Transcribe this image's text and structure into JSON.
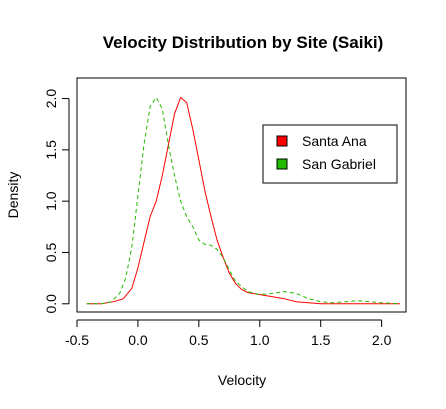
{
  "chart_data": {
    "type": "line",
    "title": "Velocity Distribution by Site (Saiki)",
    "xlabel": "Velocity",
    "ylabel": "Density",
    "xlim": [
      -0.5,
      2.2
    ],
    "ylim": [
      -0.08,
      2.2
    ],
    "x_ticks": [
      -0.5,
      0.0,
      0.5,
      1.0,
      1.5,
      2.0
    ],
    "x_tick_labels": [
      "-0.5",
      "0.0",
      "0.5",
      "1.0",
      "1.5",
      "2.0"
    ],
    "y_ticks": [
      0.0,
      0.5,
      1.0,
      1.5,
      2.0
    ],
    "y_tick_labels": [
      "0.0",
      "0.5",
      "1.0",
      "1.5",
      "2.0"
    ],
    "grid": false,
    "legend_position": "top-right",
    "series": [
      {
        "name": "Santa Ana",
        "color": "#ff0000",
        "line_style": "solid",
        "x": [
          -0.42,
          -0.3,
          -0.2,
          -0.12,
          -0.05,
          0.0,
          0.05,
          0.1,
          0.15,
          0.2,
          0.25,
          0.3,
          0.35,
          0.4,
          0.45,
          0.5,
          0.55,
          0.6,
          0.65,
          0.7,
          0.75,
          0.8,
          0.85,
          0.9,
          1.0,
          1.1,
          1.2,
          1.3,
          1.4,
          1.5,
          1.7,
          1.9,
          2.15
        ],
        "y": [
          0.0,
          0.0,
          0.02,
          0.05,
          0.15,
          0.35,
          0.6,
          0.85,
          1.0,
          1.25,
          1.55,
          1.85,
          2.01,
          1.96,
          1.7,
          1.4,
          1.1,
          0.85,
          0.62,
          0.45,
          0.3,
          0.2,
          0.14,
          0.11,
          0.09,
          0.07,
          0.05,
          0.02,
          0.01,
          0.0,
          0.0,
          0.0,
          0.0
        ]
      },
      {
        "name": "San Gabriel",
        "color": "#22bb00",
        "line_style": "dashed",
        "x": [
          -0.42,
          -0.3,
          -0.22,
          -0.15,
          -0.1,
          -0.05,
          0.0,
          0.05,
          0.1,
          0.15,
          0.2,
          0.25,
          0.3,
          0.35,
          0.4,
          0.45,
          0.5,
          0.55,
          0.6,
          0.65,
          0.7,
          0.75,
          0.8,
          0.9,
          1.0,
          1.1,
          1.2,
          1.3,
          1.4,
          1.5,
          1.6,
          1.7,
          1.8,
          1.9,
          2.0,
          2.15
        ],
        "y": [
          0.0,
          0.0,
          0.02,
          0.1,
          0.25,
          0.55,
          1.05,
          1.55,
          1.92,
          2.01,
          1.9,
          1.55,
          1.25,
          1.0,
          0.85,
          0.75,
          0.62,
          0.58,
          0.57,
          0.53,
          0.45,
          0.33,
          0.22,
          0.12,
          0.09,
          0.1,
          0.12,
          0.1,
          0.05,
          0.02,
          0.01,
          0.02,
          0.03,
          0.02,
          0.01,
          0.0
        ]
      }
    ]
  }
}
